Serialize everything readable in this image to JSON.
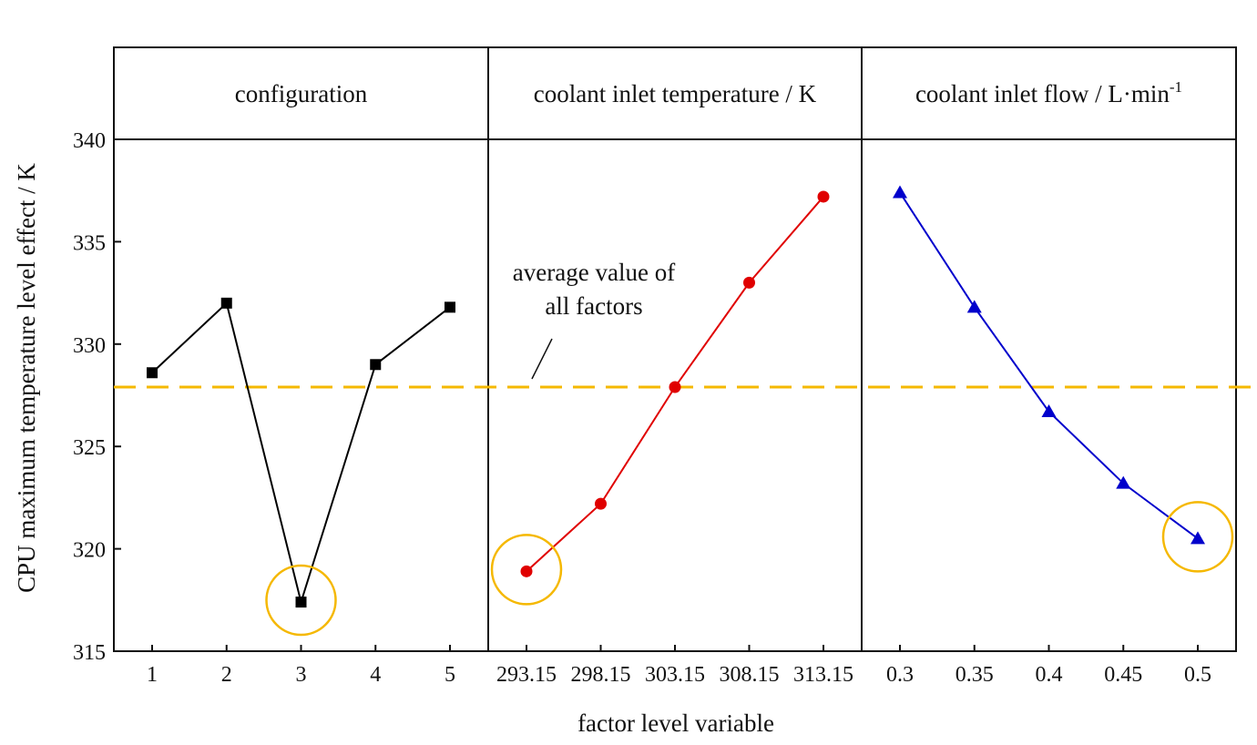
{
  "chart_data": {
    "type": "line",
    "ylabel": "CPU maximum temperature level effect / K",
    "xlabel": "factor level variable",
    "ylim": [
      315,
      340
    ],
    "yticks": [
      315,
      320,
      325,
      330,
      335,
      340
    ],
    "average_value": 327.9,
    "average_line_color": "#f5b800",
    "annotation": [
      "average value of",
      "all factors"
    ],
    "highlight_color": "#f5b800",
    "panels": [
      {
        "title": "configuration",
        "title_superscript": "",
        "categories": [
          "1",
          "2",
          "3",
          "4",
          "5"
        ],
        "values": [
          328.6,
          332.0,
          317.4,
          329.0,
          331.8
        ],
        "marker": "square",
        "color": "#000000",
        "highlight_index": 2
      },
      {
        "title": "coolant inlet temperature / K",
        "title_superscript": "",
        "categories": [
          "293.15",
          "298.15",
          "303.15",
          "308.15",
          "313.15"
        ],
        "values": [
          318.9,
          322.2,
          327.9,
          333.0,
          337.2
        ],
        "marker": "circle",
        "color": "#e00000",
        "highlight_index": 0
      },
      {
        "title": "coolant inlet flow / L·min",
        "title_superscript": "-1",
        "categories": [
          "0.3",
          "0.35",
          "0.4",
          "0.45",
          "0.5"
        ],
        "values": [
          337.4,
          331.8,
          326.7,
          323.2,
          320.5
        ],
        "marker": "triangle",
        "color": "#0000cc",
        "highlight_index": 4
      }
    ]
  }
}
